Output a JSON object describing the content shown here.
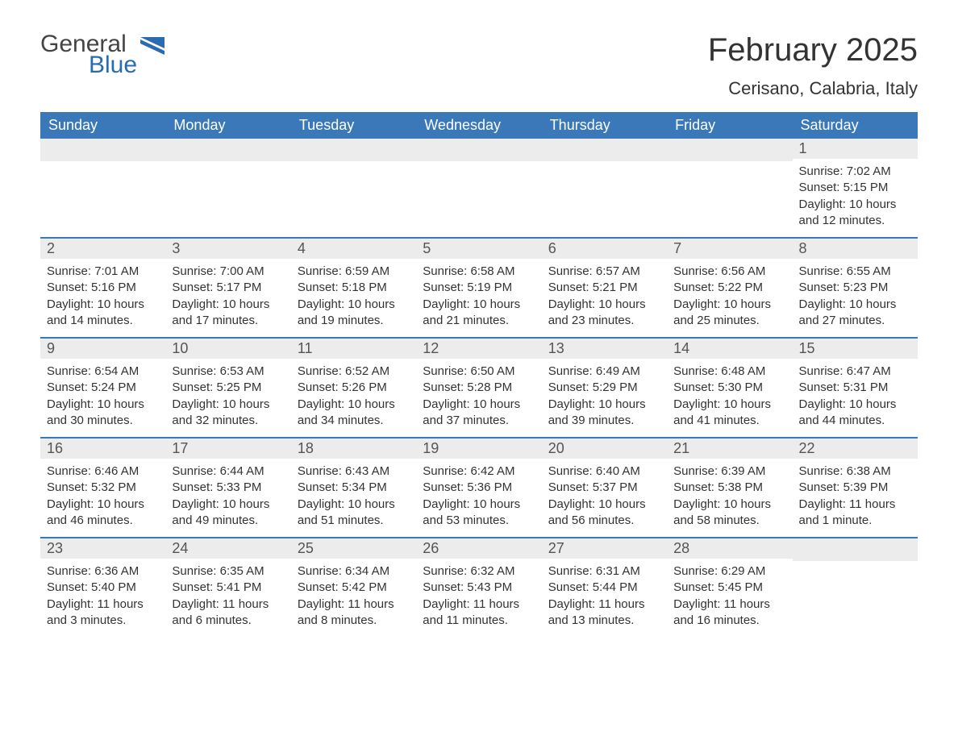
{
  "logo": {
    "general": "General",
    "blue": "Blue"
  },
  "title": "February 2025",
  "location": "Cerisano, Calabria, Italy",
  "colors": {
    "header_bg": "#3a78b9",
    "header_text": "#ffffff",
    "daynum_bg": "#ececec",
    "border": "#3a78b9",
    "text": "#333333",
    "logo_blue": "#2a6bb0"
  },
  "day_names": [
    "Sunday",
    "Monday",
    "Tuesday",
    "Wednesday",
    "Thursday",
    "Friday",
    "Saturday"
  ],
  "weeks": [
    [
      {
        "n": "",
        "sr": "",
        "ss": "",
        "dl": ""
      },
      {
        "n": "",
        "sr": "",
        "ss": "",
        "dl": ""
      },
      {
        "n": "",
        "sr": "",
        "ss": "",
        "dl": ""
      },
      {
        "n": "",
        "sr": "",
        "ss": "",
        "dl": ""
      },
      {
        "n": "",
        "sr": "",
        "ss": "",
        "dl": ""
      },
      {
        "n": "",
        "sr": "",
        "ss": "",
        "dl": ""
      },
      {
        "n": "1",
        "sr": "Sunrise: 7:02 AM",
        "ss": "Sunset: 5:15 PM",
        "dl": "Daylight: 10 hours and 12 minutes."
      }
    ],
    [
      {
        "n": "2",
        "sr": "Sunrise: 7:01 AM",
        "ss": "Sunset: 5:16 PM",
        "dl": "Daylight: 10 hours and 14 minutes."
      },
      {
        "n": "3",
        "sr": "Sunrise: 7:00 AM",
        "ss": "Sunset: 5:17 PM",
        "dl": "Daylight: 10 hours and 17 minutes."
      },
      {
        "n": "4",
        "sr": "Sunrise: 6:59 AM",
        "ss": "Sunset: 5:18 PM",
        "dl": "Daylight: 10 hours and 19 minutes."
      },
      {
        "n": "5",
        "sr": "Sunrise: 6:58 AM",
        "ss": "Sunset: 5:19 PM",
        "dl": "Daylight: 10 hours and 21 minutes."
      },
      {
        "n": "6",
        "sr": "Sunrise: 6:57 AM",
        "ss": "Sunset: 5:21 PM",
        "dl": "Daylight: 10 hours and 23 minutes."
      },
      {
        "n": "7",
        "sr": "Sunrise: 6:56 AM",
        "ss": "Sunset: 5:22 PM",
        "dl": "Daylight: 10 hours and 25 minutes."
      },
      {
        "n": "8",
        "sr": "Sunrise: 6:55 AM",
        "ss": "Sunset: 5:23 PM",
        "dl": "Daylight: 10 hours and 27 minutes."
      }
    ],
    [
      {
        "n": "9",
        "sr": "Sunrise: 6:54 AM",
        "ss": "Sunset: 5:24 PM",
        "dl": "Daylight: 10 hours and 30 minutes."
      },
      {
        "n": "10",
        "sr": "Sunrise: 6:53 AM",
        "ss": "Sunset: 5:25 PM",
        "dl": "Daylight: 10 hours and 32 minutes."
      },
      {
        "n": "11",
        "sr": "Sunrise: 6:52 AM",
        "ss": "Sunset: 5:26 PM",
        "dl": "Daylight: 10 hours and 34 minutes."
      },
      {
        "n": "12",
        "sr": "Sunrise: 6:50 AM",
        "ss": "Sunset: 5:28 PM",
        "dl": "Daylight: 10 hours and 37 minutes."
      },
      {
        "n": "13",
        "sr": "Sunrise: 6:49 AM",
        "ss": "Sunset: 5:29 PM",
        "dl": "Daylight: 10 hours and 39 minutes."
      },
      {
        "n": "14",
        "sr": "Sunrise: 6:48 AM",
        "ss": "Sunset: 5:30 PM",
        "dl": "Daylight: 10 hours and 41 minutes."
      },
      {
        "n": "15",
        "sr": "Sunrise: 6:47 AM",
        "ss": "Sunset: 5:31 PM",
        "dl": "Daylight: 10 hours and 44 minutes."
      }
    ],
    [
      {
        "n": "16",
        "sr": "Sunrise: 6:46 AM",
        "ss": "Sunset: 5:32 PM",
        "dl": "Daylight: 10 hours and 46 minutes."
      },
      {
        "n": "17",
        "sr": "Sunrise: 6:44 AM",
        "ss": "Sunset: 5:33 PM",
        "dl": "Daylight: 10 hours and 49 minutes."
      },
      {
        "n": "18",
        "sr": "Sunrise: 6:43 AM",
        "ss": "Sunset: 5:34 PM",
        "dl": "Daylight: 10 hours and 51 minutes."
      },
      {
        "n": "19",
        "sr": "Sunrise: 6:42 AM",
        "ss": "Sunset: 5:36 PM",
        "dl": "Daylight: 10 hours and 53 minutes."
      },
      {
        "n": "20",
        "sr": "Sunrise: 6:40 AM",
        "ss": "Sunset: 5:37 PM",
        "dl": "Daylight: 10 hours and 56 minutes."
      },
      {
        "n": "21",
        "sr": "Sunrise: 6:39 AM",
        "ss": "Sunset: 5:38 PM",
        "dl": "Daylight: 10 hours and 58 minutes."
      },
      {
        "n": "22",
        "sr": "Sunrise: 6:38 AM",
        "ss": "Sunset: 5:39 PM",
        "dl": "Daylight: 11 hours and 1 minute."
      }
    ],
    [
      {
        "n": "23",
        "sr": "Sunrise: 6:36 AM",
        "ss": "Sunset: 5:40 PM",
        "dl": "Daylight: 11 hours and 3 minutes."
      },
      {
        "n": "24",
        "sr": "Sunrise: 6:35 AM",
        "ss": "Sunset: 5:41 PM",
        "dl": "Daylight: 11 hours and 6 minutes."
      },
      {
        "n": "25",
        "sr": "Sunrise: 6:34 AM",
        "ss": "Sunset: 5:42 PM",
        "dl": "Daylight: 11 hours and 8 minutes."
      },
      {
        "n": "26",
        "sr": "Sunrise: 6:32 AM",
        "ss": "Sunset: 5:43 PM",
        "dl": "Daylight: 11 hours and 11 minutes."
      },
      {
        "n": "27",
        "sr": "Sunrise: 6:31 AM",
        "ss": "Sunset: 5:44 PM",
        "dl": "Daylight: 11 hours and 13 minutes."
      },
      {
        "n": "28",
        "sr": "Sunrise: 6:29 AM",
        "ss": "Sunset: 5:45 PM",
        "dl": "Daylight: 11 hours and 16 minutes."
      },
      {
        "n": "",
        "sr": "",
        "ss": "",
        "dl": ""
      }
    ]
  ]
}
